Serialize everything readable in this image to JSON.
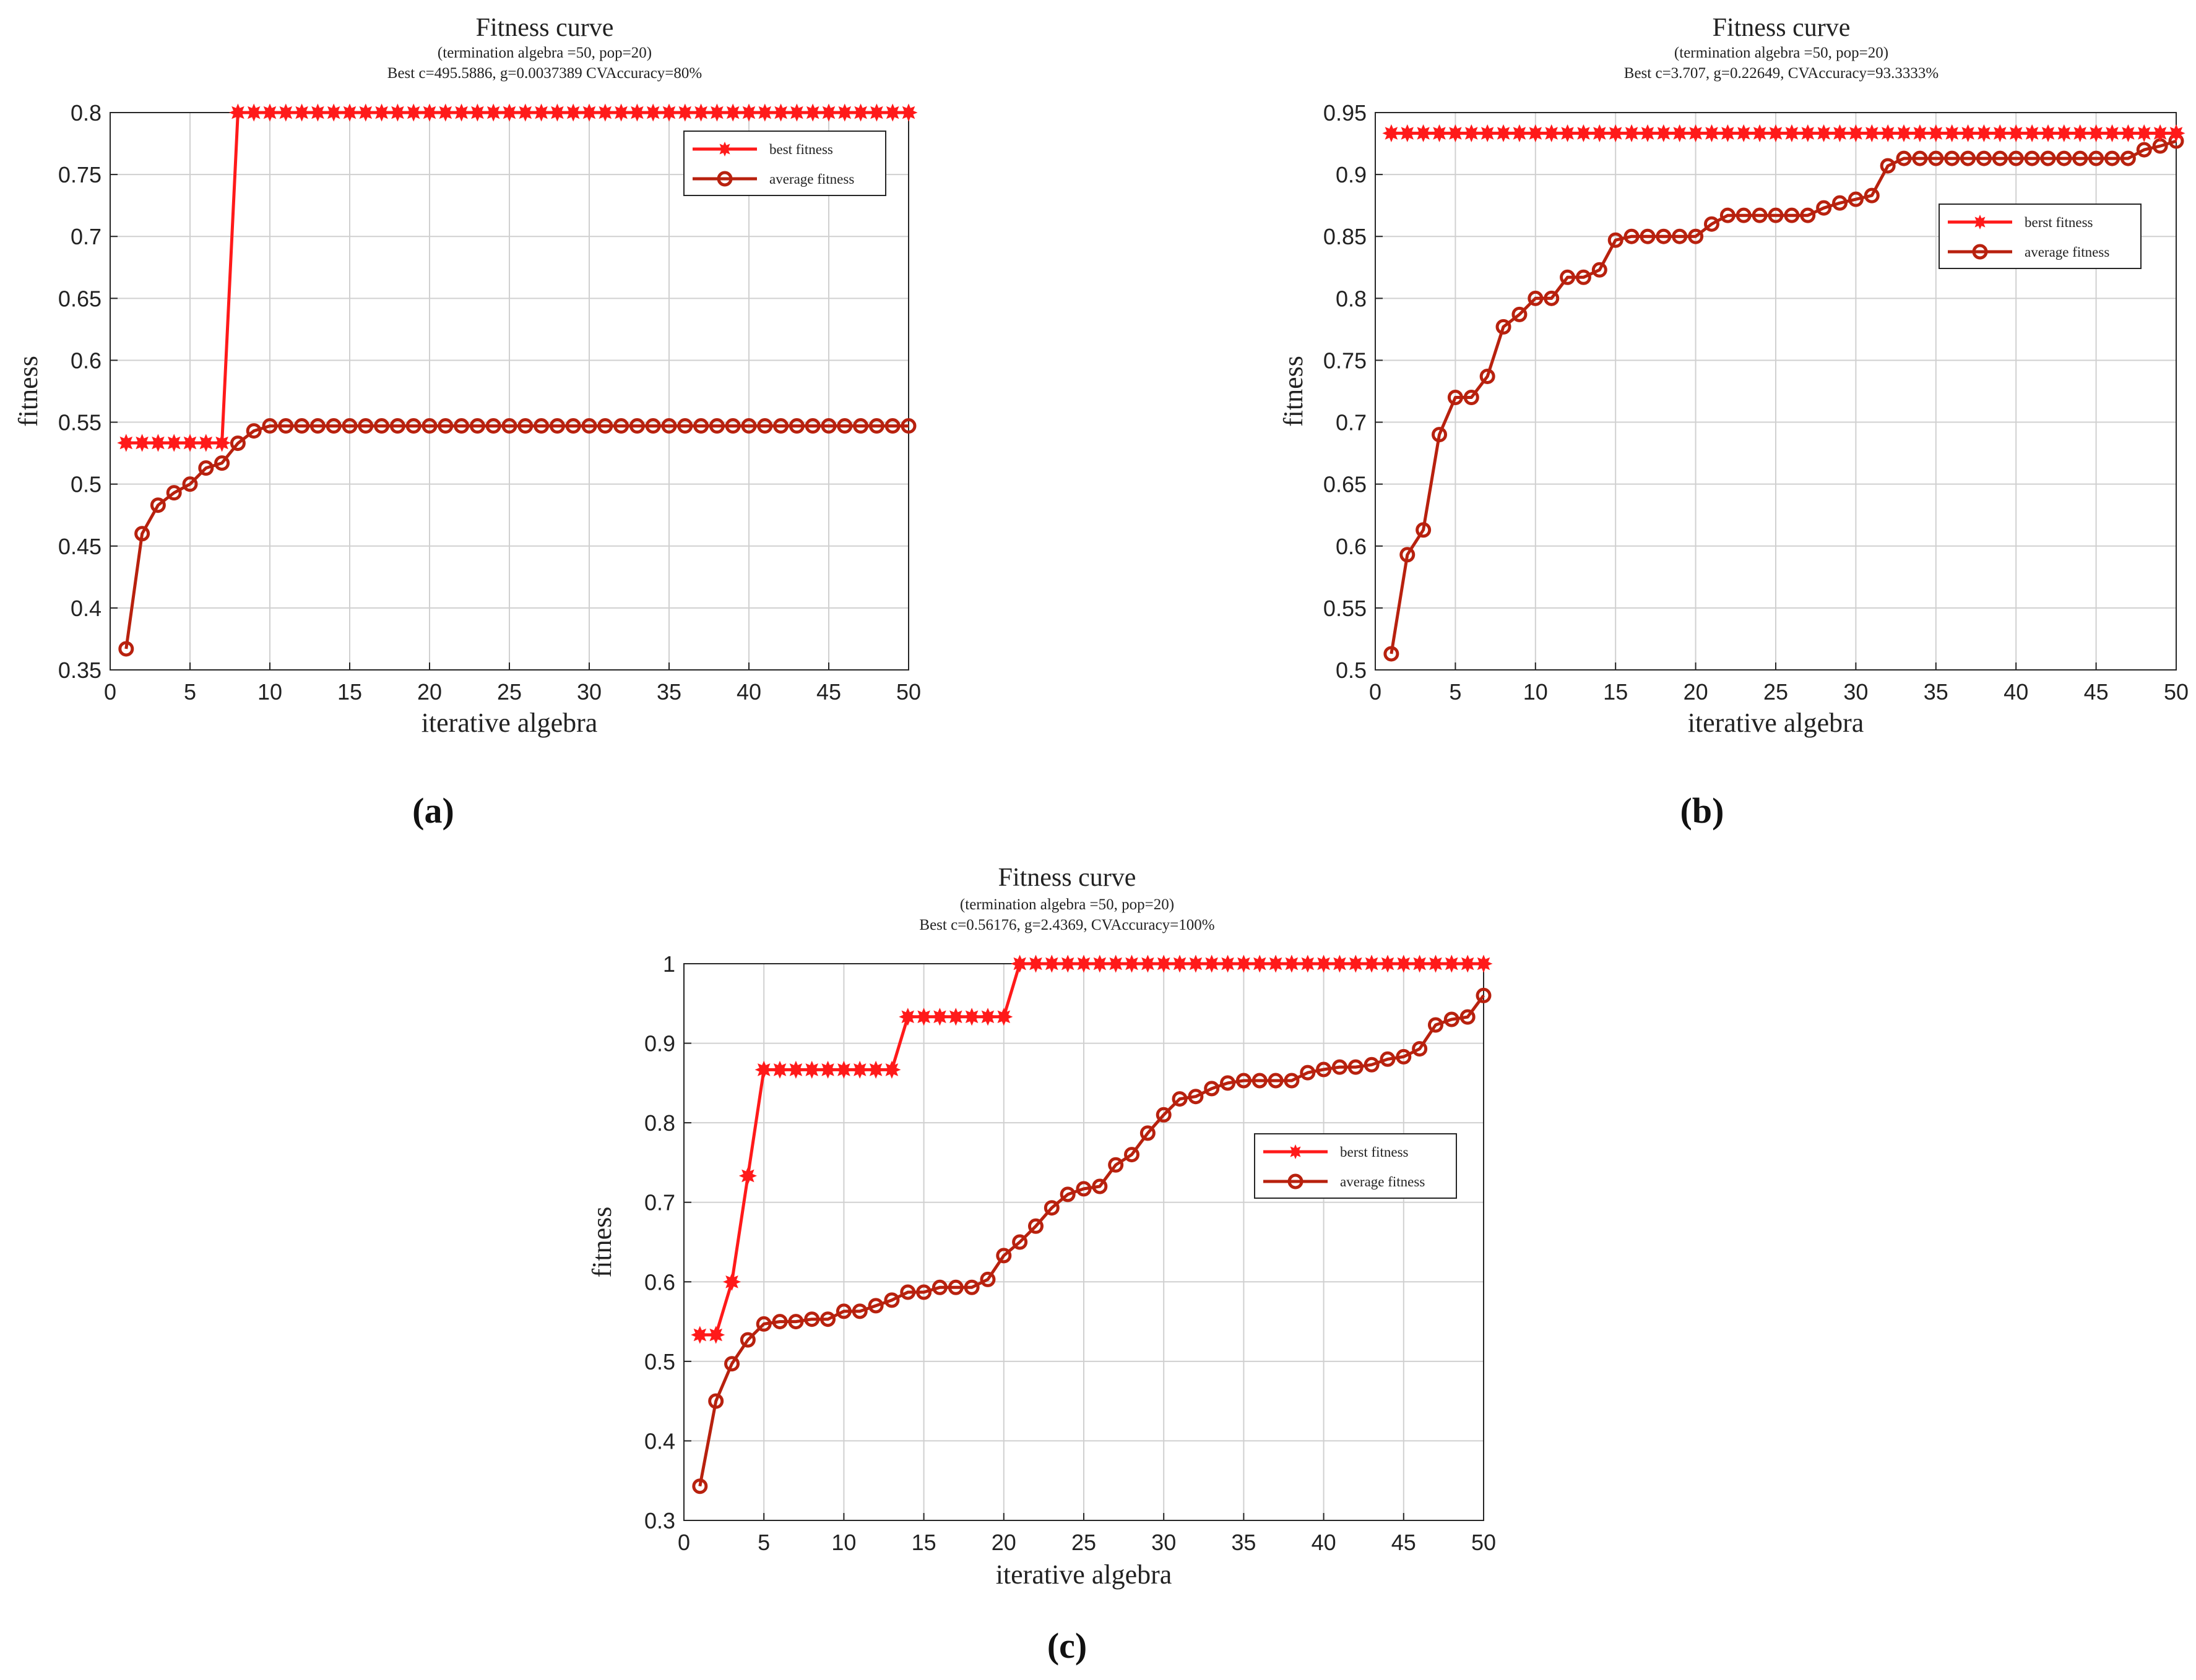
{
  "chart_data": [
    {
      "type": "line",
      "panel_label": "(a)",
      "title": "Fitness curve",
      "subtitle1": "(termination algebra =50, pop=20)",
      "subtitle2": "Best c=495.5886, g=0.0037389 CVAccuracy=80%",
      "xlabel": "iterative algebra",
      "ylabel": "fitness",
      "xlim": [
        0,
        50
      ],
      "ylim": [
        0.35,
        0.8
      ],
      "xticks": [
        "0",
        "5",
        "10",
        "15",
        "20",
        "25",
        "30",
        "35",
        "40",
        "45",
        "50"
      ],
      "yticks": [
        "0.35",
        "0.4",
        "0.45",
        "0.5",
        "0.55",
        "0.6",
        "0.65",
        "0.7",
        "0.75",
        "0.8"
      ],
      "grid": true,
      "legend_position": "top-right",
      "series": [
        {
          "name": "best fitness",
          "marker": "star",
          "color": "#ff1a1a",
          "values": [
            0.5333,
            0.5333,
            0.5333,
            0.5333,
            0.5333,
            0.5333,
            0.5333,
            0.8,
            0.8,
            0.8,
            0.8,
            0.8,
            0.8,
            0.8,
            0.8,
            0.8,
            0.8,
            0.8,
            0.8,
            0.8,
            0.8,
            0.8,
            0.8,
            0.8,
            0.8,
            0.8,
            0.8,
            0.8,
            0.8,
            0.8,
            0.8,
            0.8,
            0.8,
            0.8,
            0.8,
            0.8,
            0.8,
            0.8,
            0.8,
            0.8,
            0.8,
            0.8,
            0.8,
            0.8,
            0.8,
            0.8,
            0.8,
            0.8,
            0.8,
            0.8
          ]
        },
        {
          "name": "average fitness",
          "marker": "circle",
          "color": "#b8210e",
          "values": [
            0.367,
            0.46,
            0.483,
            0.493,
            0.5,
            0.513,
            0.517,
            0.533,
            0.543,
            0.547,
            0.547,
            0.547,
            0.547,
            0.547,
            0.547,
            0.547,
            0.547,
            0.547,
            0.547,
            0.547,
            0.547,
            0.547,
            0.547,
            0.547,
            0.547,
            0.547,
            0.547,
            0.547,
            0.547,
            0.547,
            0.547,
            0.547,
            0.547,
            0.547,
            0.547,
            0.547,
            0.547,
            0.547,
            0.547,
            0.547,
            0.547,
            0.547,
            0.547,
            0.547,
            0.547,
            0.547,
            0.547,
            0.547,
            0.547,
            0.547
          ]
        }
      ]
    },
    {
      "type": "line",
      "panel_label": "(b)",
      "title": "Fitness curve",
      "subtitle1": "(termination algebra =50, pop=20)",
      "subtitle2": "Best c=3.707, g=0.22649, CVAccuracy=93.3333%",
      "xlabel": "iterative algebra",
      "ylabel": "fitness",
      "xlim": [
        0,
        50
      ],
      "ylim": [
        0.5,
        0.95
      ],
      "xticks": [
        "0",
        "5",
        "10",
        "15",
        "20",
        "25",
        "30",
        "35",
        "40",
        "45",
        "50"
      ],
      "yticks": [
        "0.5",
        "0.55",
        "0.6",
        "0.65",
        "0.7",
        "0.75",
        "0.8",
        "0.85",
        "0.9",
        "0.95"
      ],
      "grid": true,
      "legend_position": "upper-right",
      "series": [
        {
          "name": "berst fitness",
          "marker": "star",
          "color": "#ff1a1a",
          "values": [
            0.9333,
            0.9333,
            0.9333,
            0.9333,
            0.9333,
            0.9333,
            0.9333,
            0.9333,
            0.9333,
            0.9333,
            0.9333,
            0.9333,
            0.9333,
            0.9333,
            0.9333,
            0.9333,
            0.9333,
            0.9333,
            0.9333,
            0.9333,
            0.9333,
            0.9333,
            0.9333,
            0.9333,
            0.9333,
            0.9333,
            0.9333,
            0.9333,
            0.9333,
            0.9333,
            0.9333,
            0.9333,
            0.9333,
            0.9333,
            0.9333,
            0.9333,
            0.9333,
            0.9333,
            0.9333,
            0.9333,
            0.9333,
            0.9333,
            0.9333,
            0.9333,
            0.9333,
            0.9333,
            0.9333,
            0.9333,
            0.9333,
            0.9333
          ]
        },
        {
          "name": "average fitness",
          "marker": "circle",
          "color": "#b8210e",
          "values": [
            0.513,
            0.593,
            0.613,
            0.69,
            0.72,
            0.72,
            0.737,
            0.777,
            0.787,
            0.8,
            0.8,
            0.817,
            0.817,
            0.823,
            0.847,
            0.85,
            0.85,
            0.85,
            0.85,
            0.85,
            0.86,
            0.867,
            0.867,
            0.867,
            0.867,
            0.867,
            0.867,
            0.873,
            0.877,
            0.88,
            0.883,
            0.907,
            0.913,
            0.913,
            0.913,
            0.913,
            0.913,
            0.913,
            0.913,
            0.913,
            0.913,
            0.913,
            0.913,
            0.913,
            0.913,
            0.913,
            0.913,
            0.92,
            0.923,
            0.927
          ]
        }
      ]
    },
    {
      "type": "line",
      "panel_label": "(c)",
      "title": "Fitness curve",
      "subtitle1": "(termination algebra =50, pop=20)",
      "subtitle2": "Best c=0.56176, g=2.4369, CVAccuracy=100%",
      "xlabel": "iterative algebra",
      "ylabel": "fitness",
      "xlim": [
        0,
        50
      ],
      "ylim": [
        0.3,
        1
      ],
      "xticks": [
        "0",
        "5",
        "10",
        "15",
        "20",
        "25",
        "30",
        "35",
        "40",
        "45",
        "50"
      ],
      "yticks": [
        "0.3",
        "0.4",
        "0.5",
        "0.6",
        "0.7",
        "0.8",
        "0.9",
        "1"
      ],
      "grid": true,
      "legend_position": "middle-right",
      "series": [
        {
          "name": "berst fitness",
          "marker": "star",
          "color": "#ff1a1a",
          "values": [
            0.5333,
            0.5333,
            0.6,
            0.7333,
            0.8667,
            0.8667,
            0.8667,
            0.8667,
            0.8667,
            0.8667,
            0.8667,
            0.8667,
            0.8667,
            0.9333,
            0.9333,
            0.9333,
            0.9333,
            0.9333,
            0.9333,
            0.9333,
            1,
            1,
            1,
            1,
            1,
            1,
            1,
            1,
            1,
            1,
            1,
            1,
            1,
            1,
            1,
            1,
            1,
            1,
            1,
            1,
            1,
            1,
            1,
            1,
            1,
            1,
            1,
            1,
            1,
            1
          ]
        },
        {
          "name": "average fitness",
          "marker": "circle",
          "color": "#b8210e",
          "values": [
            0.343,
            0.45,
            0.497,
            0.527,
            0.547,
            0.55,
            0.55,
            0.553,
            0.553,
            0.563,
            0.563,
            0.57,
            0.577,
            0.587,
            0.587,
            0.593,
            0.593,
            0.593,
            0.603,
            0.633,
            0.65,
            0.67,
            0.693,
            0.71,
            0.717,
            0.72,
            0.747,
            0.76,
            0.787,
            0.81,
            0.83,
            0.833,
            0.843,
            0.85,
            0.853,
            0.853,
            0.853,
            0.853,
            0.863,
            0.867,
            0.87,
            0.87,
            0.873,
            0.88,
            0.883,
            0.893,
            0.923,
            0.93,
            0.933,
            0.96
          ]
        }
      ]
    }
  ]
}
